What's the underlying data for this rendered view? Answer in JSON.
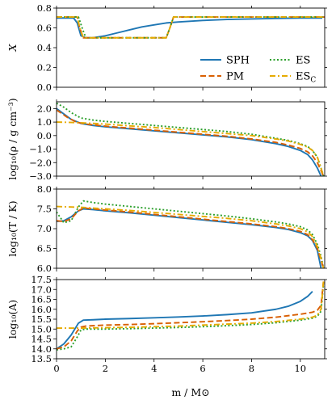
{
  "chart_data": {
    "type": "line",
    "xlabel": "m / M⊙",
    "xlim": [
      0,
      11
    ],
    "xticks": [
      0,
      2,
      4,
      6,
      8,
      10
    ],
    "legend": {
      "placement": "lower-right",
      "panel": 0,
      "columns": 2,
      "entries": [
        {
          "series": "SPH",
          "label": "SPH",
          "sub": ""
        },
        {
          "series": "ES",
          "label": "ES",
          "sub": ""
        },
        {
          "series": "PM",
          "label": "PM",
          "sub": ""
        },
        {
          "series": "ESC",
          "label": "ES",
          "sub": "C"
        }
      ]
    },
    "series_styles": {
      "SPH": {
        "color": "#1f77b4",
        "dash": "solid"
      },
      "ES": {
        "color": "#2ca02c",
        "dash": "dotted"
      },
      "PM": {
        "color": "#d95f02",
        "dash": "dashed"
      },
      "ESC": {
        "color": "#e6ab02",
        "dash": "dashdot"
      }
    },
    "panels": [
      {
        "ylabel": "X",
        "ylabel_sub": "",
        "ylim": [
          0.0,
          0.8
        ],
        "yticks": [
          0.0,
          0.2,
          0.4,
          0.6,
          0.8
        ],
        "ytick_labels": [
          "0.0",
          "0.2",
          "0.4",
          "0.6",
          "0.8"
        ],
        "series": [
          {
            "key": "SPH",
            "x": [
              0,
              0.7,
              0.85,
              1.0,
              1.2,
              1.5,
              2.0,
              2.5,
              3.0,
              3.5,
              4.0,
              4.5,
              5.0,
              6.0,
              7.0,
              8.0,
              9.0,
              10.0,
              10.9
            ],
            "y": [
              0.7,
              0.7,
              0.65,
              0.52,
              0.5,
              0.5,
              0.52,
              0.55,
              0.58,
              0.61,
              0.63,
              0.65,
              0.66,
              0.675,
              0.685,
              0.69,
              0.695,
              0.7,
              0.7
            ]
          },
          {
            "key": "PM",
            "x": [
              0,
              0.85,
              0.95,
              1.1,
              4.5,
              4.65,
              4.8,
              11.0
            ],
            "y": [
              0.71,
              0.71,
              0.6,
              0.5,
              0.5,
              0.6,
              0.71,
              0.71
            ]
          },
          {
            "key": "ES",
            "x": [
              0,
              0.9,
              1.05,
              1.2,
              4.5,
              4.65,
              4.8,
              11.0
            ],
            "y": [
              0.71,
              0.71,
              0.6,
              0.5,
              0.5,
              0.6,
              0.71,
              0.71
            ]
          },
          {
            "key": "ESC",
            "x": [
              0,
              0.85,
              0.95,
              1.1,
              4.5,
              4.65,
              4.8,
              11.0
            ],
            "y": [
              0.71,
              0.71,
              0.6,
              0.5,
              0.5,
              0.6,
              0.71,
              0.71
            ]
          }
        ]
      },
      {
        "ylabel": "log₁₀(ρ / g cm⁻³)",
        "ylabel_sub": "",
        "ylim": [
          -3.0,
          2.5
        ],
        "yticks": [
          -3.0,
          -2.0,
          -1.0,
          0.0,
          1.0,
          2.0
        ],
        "ytick_labels": [
          "−3.0",
          "−2.0",
          "−1.0",
          "0.0",
          "1.0",
          "2.0"
        ],
        "series": [
          {
            "key": "SPH",
            "x": [
              0,
              0.3,
              0.6,
              1.0,
              1.5,
              2.0,
              3.0,
              4.0,
              5.0,
              6.0,
              7.0,
              8.0,
              9.0,
              9.5,
              10.0,
              10.3,
              10.5,
              10.7,
              10.85
            ],
            "y": [
              2.0,
              1.6,
              1.2,
              0.9,
              0.75,
              0.65,
              0.5,
              0.35,
              0.2,
              0.05,
              -0.1,
              -0.3,
              -0.6,
              -0.8,
              -1.1,
              -1.4,
              -1.8,
              -2.4,
              -3.0
            ]
          },
          {
            "key": "ES",
            "x": [
              0,
              0.3,
              0.6,
              1.0,
              1.5,
              2.0,
              3.0,
              4.0,
              5.0,
              6.0,
              7.0,
              8.0,
              9.0,
              9.5,
              10.0,
              10.3,
              10.5,
              10.7,
              10.85,
              10.95
            ],
            "y": [
              2.4,
              2.1,
              1.7,
              1.3,
              1.15,
              1.05,
              0.9,
              0.75,
              0.6,
              0.45,
              0.3,
              0.1,
              -0.2,
              -0.35,
              -0.6,
              -0.8,
              -1.1,
              -1.6,
              -2.4,
              -3.0
            ]
          },
          {
            "key": "PM",
            "x": [
              0,
              0.4,
              0.8,
              1.2,
              2.0,
              3.0,
              4.0,
              5.0,
              6.0,
              7.0,
              8.0,
              9.0,
              9.5,
              10.0,
              10.3,
              10.5,
              10.7,
              10.85,
              10.95
            ],
            "y": [
              1.9,
              1.4,
              1.0,
              0.85,
              0.7,
              0.55,
              0.4,
              0.25,
              0.1,
              -0.05,
              -0.25,
              -0.5,
              -0.7,
              -0.95,
              -1.2,
              -1.5,
              -2.0,
              -2.6,
              -3.0
            ]
          },
          {
            "key": "ESC",
            "x": [
              0,
              0.5,
              1.0,
              1.5,
              2.0,
              3.0,
              4.0,
              5.0,
              6.0,
              7.0,
              8.0,
              9.0,
              9.5,
              10.0,
              10.3,
              10.5,
              10.7,
              10.85,
              10.95
            ],
            "y": [
              1.0,
              0.98,
              0.95,
              0.9,
              0.85,
              0.72,
              0.6,
              0.45,
              0.3,
              0.15,
              0.0,
              -0.25,
              -0.4,
              -0.65,
              -0.85,
              -1.1,
              -1.6,
              -2.4,
              -3.0
            ]
          }
        ]
      },
      {
        "ylabel": "log₁₀(T / K)",
        "ylabel_sub": "",
        "ylim": [
          6.0,
          8.0
        ],
        "yticks": [
          6.0,
          6.5,
          7.0,
          7.5,
          8.0
        ],
        "ytick_labels": [
          "6.0",
          "6.5",
          "7.0",
          "7.5",
          "8.0"
        ],
        "series": [
          {
            "key": "SPH",
            "x": [
              0,
              0.3,
              0.6,
              0.9,
              1.1,
              1.5,
              2.0,
              3.0,
              4.0,
              5.0,
              6.0,
              7.0,
              8.0,
              9.0,
              9.5,
              10.0,
              10.3,
              10.5,
              10.7,
              10.85
            ],
            "y": [
              7.18,
              7.2,
              7.3,
              7.45,
              7.5,
              7.48,
              7.45,
              7.4,
              7.34,
              7.28,
              7.22,
              7.16,
              7.1,
              7.03,
              6.98,
              6.9,
              6.82,
              6.7,
              6.45,
              6.0
            ]
          },
          {
            "key": "ES",
            "x": [
              0,
              0.3,
              0.6,
              0.9,
              1.1,
              1.5,
              2.0,
              3.0,
              4.0,
              5.0,
              6.0,
              7.0,
              8.0,
              9.0,
              9.5,
              10.0,
              10.3,
              10.5,
              10.7,
              10.85,
              10.95
            ],
            "y": [
              7.42,
              7.15,
              7.2,
              7.55,
              7.7,
              7.66,
              7.62,
              7.56,
              7.5,
              7.44,
              7.38,
              7.32,
              7.25,
              7.17,
              7.12,
              7.05,
              6.97,
              6.85,
              6.6,
              6.3,
              6.0
            ]
          },
          {
            "key": "PM",
            "x": [
              0,
              0.3,
              0.6,
              0.9,
              1.1,
              1.5,
              2.0,
              3.0,
              4.0,
              5.0,
              6.0,
              7.0,
              8.0,
              9.0,
              9.5,
              10.0,
              10.3,
              10.5,
              10.7,
              10.85,
              10.95
            ],
            "y": [
              7.2,
              7.18,
              7.25,
              7.45,
              7.52,
              7.5,
              7.47,
              7.42,
              7.36,
              7.3,
              7.24,
              7.18,
              7.12,
              7.05,
              7.0,
              6.93,
              6.85,
              6.72,
              6.5,
              6.2,
              6.0
            ]
          },
          {
            "key": "ESC",
            "x": [
              0,
              0.5,
              1.0,
              1.5,
              2.0,
              3.0,
              4.0,
              5.0,
              6.0,
              7.0,
              8.0,
              9.0,
              9.5,
              10.0,
              10.3,
              10.5,
              10.7,
              10.85,
              10.95
            ],
            "y": [
              7.56,
              7.55,
              7.54,
              7.52,
              7.5,
              7.46,
              7.41,
              7.36,
              7.31,
              7.26,
              7.2,
              7.12,
              7.07,
              7.0,
              6.92,
              6.8,
              6.55,
              6.25,
              6.0
            ]
          }
        ]
      },
      {
        "ylabel": "log₁₀(A)",
        "ylabel_sub": "",
        "ylim": [
          13.5,
          17.5
        ],
        "yticks": [
          13.5,
          14.0,
          14.5,
          15.0,
          15.5,
          16.0,
          16.5,
          17.0,
          17.5
        ],
        "ytick_labels": [
          "13.5",
          "14.0",
          "14.5",
          "15.0",
          "15.5",
          "16.0",
          "16.5",
          "17.0",
          "17.5"
        ],
        "series": [
          {
            "key": "SPH",
            "x": [
              0,
              0.3,
              0.6,
              0.9,
              1.1,
              1.5,
              2.0,
              3.0,
              4.0,
              5.0,
              6.0,
              7.0,
              8.0,
              9.0,
              9.5,
              10.0,
              10.3,
              10.5
            ],
            "y": [
              14.0,
              14.25,
              14.7,
              15.3,
              15.45,
              15.47,
              15.5,
              15.53,
              15.57,
              15.61,
              15.66,
              15.73,
              15.82,
              16.0,
              16.15,
              16.4,
              16.65,
              16.9
            ]
          },
          {
            "key": "ES",
            "x": [
              0,
              0.3,
              0.6,
              0.85,
              1.0,
              1.2,
              2.0,
              3.0,
              4.0,
              5.0,
              6.0,
              7.0,
              8.0,
              9.0,
              10.0,
              10.5,
              10.7,
              10.85,
              10.95
            ],
            "y": [
              13.95,
              14.0,
              14.1,
              14.6,
              14.95,
              15.0,
              15.0,
              15.02,
              15.05,
              15.08,
              15.12,
              15.17,
              15.23,
              15.32,
              15.45,
              15.55,
              15.65,
              15.9,
              17.3
            ]
          },
          {
            "key": "PM",
            "x": [
              0,
              0.3,
              0.6,
              0.85,
              1.0,
              1.2,
              2.0,
              3.0,
              4.0,
              5.0,
              6.0,
              7.0,
              8.0,
              9.0,
              10.0,
              10.5,
              10.7,
              10.85,
              10.95
            ],
            "y": [
              14.0,
              14.1,
              14.4,
              14.9,
              15.1,
              15.15,
              15.2,
              15.23,
              15.27,
              15.32,
              15.37,
              15.43,
              15.5,
              15.6,
              15.75,
              15.85,
              15.95,
              16.2,
              17.4
            ]
          },
          {
            "key": "ESC",
            "x": [
              0,
              0.5,
              1.0,
              1.5,
              2.0,
              3.0,
              4.0,
              5.0,
              6.0,
              7.0,
              8.0,
              9.0,
              10.0,
              10.5,
              10.7,
              10.85,
              10.95
            ],
            "y": [
              15.05,
              15.05,
              15.05,
              15.06,
              15.07,
              15.09,
              15.12,
              15.15,
              15.2,
              15.25,
              15.3,
              15.38,
              15.5,
              15.6,
              15.7,
              16.0,
              17.4
            ]
          }
        ]
      }
    ]
  }
}
